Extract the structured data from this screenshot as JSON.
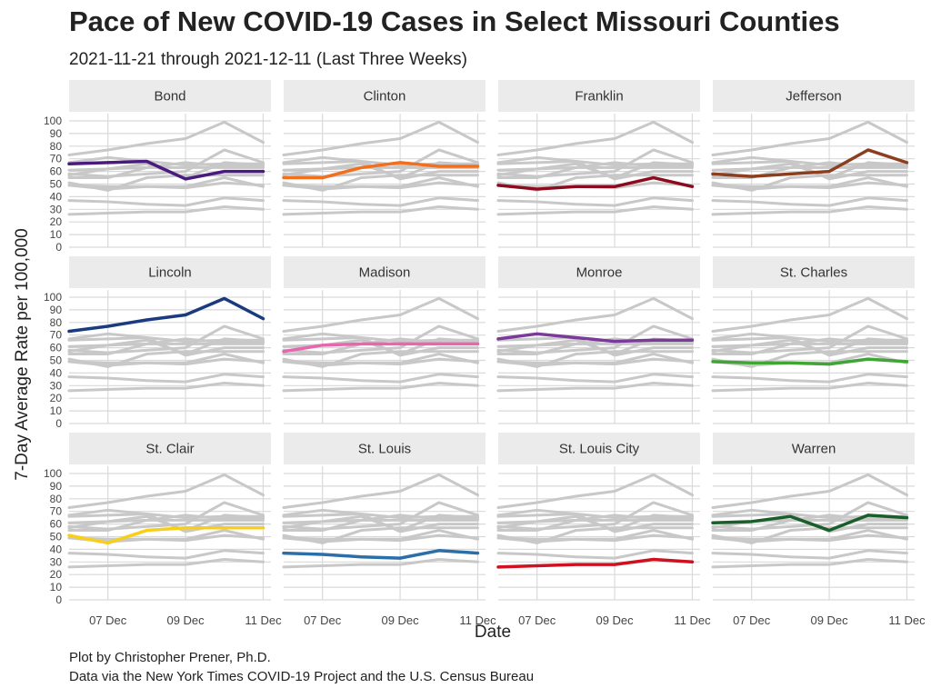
{
  "title": "Pace of New COVID-19 Cases in Select Missouri Counties",
  "subtitle": "2021-11-21 through 2021-12-11 (Last Three Weeks)",
  "caption": [
    "Plot by Christopher Prener, Ph.D.",
    "Data via the New York Times COVID-19 Project and the U.S. Census Bureau"
  ],
  "chart_data": {
    "type": "line",
    "layout": "small-multiples 3x4",
    "xlabel": "Date",
    "ylabel": "7-Day Average Rate per 100,000",
    "x": [
      "2021-12-06",
      "2021-12-07",
      "2021-12-08",
      "2021-12-09",
      "2021-12-10",
      "2021-12-11"
    ],
    "x_tick_labels": [
      "07 Dec",
      "09 Dec",
      "11 Dec"
    ],
    "x_tick_dates": [
      "2021-12-07",
      "2021-12-09",
      "2021-12-11"
    ],
    "ylim": [
      0,
      100
    ],
    "y_ticks": [
      0,
      10,
      20,
      30,
      40,
      50,
      60,
      70,
      80,
      90,
      100
    ],
    "grid": true,
    "background_color": "#c8c8c8",
    "panel_strip_color": "#ebebeb",
    "series": [
      {
        "name": "Bond",
        "color": "#4b1a7e",
        "values": [
          66,
          67,
          68,
          54,
          60,
          60
        ]
      },
      {
        "name": "Clinton",
        "color": "#f26f1d",
        "values": [
          55,
          55,
          63,
          67,
          64,
          64
        ]
      },
      {
        "name": "Franklin",
        "color": "#8c0a1e",
        "values": [
          49,
          46,
          48,
          48,
          55,
          48
        ]
      },
      {
        "name": "Jefferson",
        "color": "#8b3f1f",
        "values": [
          58,
          56,
          58,
          60,
          77,
          67
        ]
      },
      {
        "name": "Lincoln",
        "color": "#1a3b7e",
        "values": [
          73,
          77,
          82,
          86,
          99,
          83
        ]
      },
      {
        "name": "Madison",
        "color": "#e667ae",
        "values": [
          57,
          62,
          63,
          63,
          63,
          63
        ]
      },
      {
        "name": "Monroe",
        "color": "#7b3a9a",
        "values": [
          67,
          71,
          68,
          65,
          66,
          66
        ]
      },
      {
        "name": "St. Charles",
        "color": "#3fa535",
        "values": [
          49,
          48,
          48,
          47,
          51,
          49
        ]
      },
      {
        "name": "St. Clair",
        "color": "#f7cf1a",
        "values": [
          51,
          45,
          55,
          57,
          57,
          57
        ]
      },
      {
        "name": "St. Louis",
        "color": "#2c6ea8",
        "values": [
          37,
          36,
          34,
          33,
          39,
          37
        ]
      },
      {
        "name": "St. Louis City",
        "color": "#d01020",
        "values": [
          26,
          27,
          28,
          28,
          32,
          30
        ]
      },
      {
        "name": "Warren",
        "color": "#1a5e2a",
        "values": [
          61,
          62,
          66,
          55,
          67,
          65
        ]
      }
    ]
  }
}
